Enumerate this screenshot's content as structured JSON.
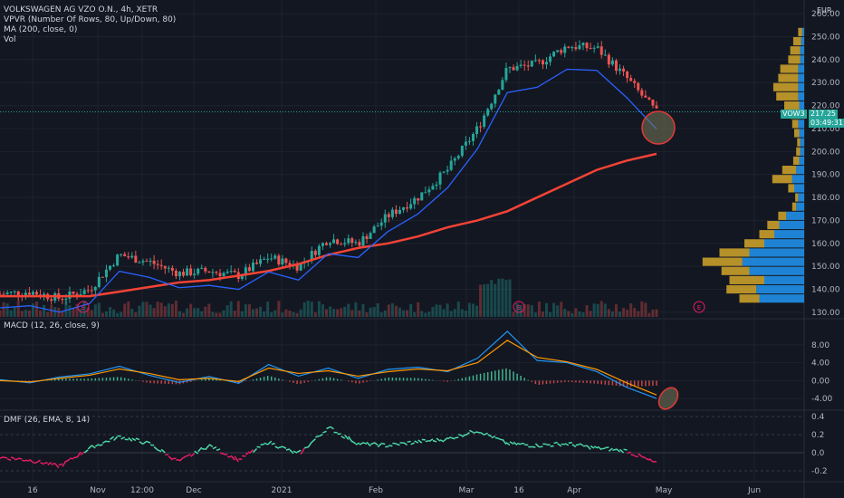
{
  "legend": {
    "title": "VOLKSWAGEN AG VZO O.N., 4h, XETR",
    "line2": "VPVR (Number Of Rows, 80, Up/Down, 80)",
    "line3": "MA (200, close, 0)",
    "line4": "Vol",
    "macd": "MACD (12, 26, close, 9)",
    "dmf": "DMF (26, EMA, 8, 14)"
  },
  "currency": "EUR",
  "price_badge": {
    "symbol": "VOW3",
    "price": "217.25",
    "timer": "03:49:31",
    "color": "#26a69a"
  },
  "earnings_marker": "E",
  "colors": {
    "background": "#131722",
    "up": "#26a69a",
    "down": "#ef5350",
    "ma200": "#f44336",
    "blue_ma": "#2962ff",
    "vp_up": "#2196f3",
    "vp_down": "#d4a62a",
    "macd": "#2196f3",
    "signal": "#ff9800",
    "dmf_up": "#4cd9a8",
    "dmf_down": "#e91e63"
  },
  "chart_data": [
    {
      "type": "line",
      "title": "VOLKSWAGEN AG VZO O.N., 4h, XETR",
      "x_ticks": [
        "16",
        "Nov",
        "12:00",
        "Dec",
        "2021",
        "Feb",
        "Mar",
        "16",
        "Apr",
        "May",
        "Jun"
      ],
      "y_ticks": [
        130,
        140,
        150,
        160,
        170,
        180,
        190,
        200,
        210,
        220,
        230,
        240,
        250,
        260
      ],
      "ylim": [
        128,
        262
      ],
      "series": [
        {
          "name": "Price",
          "x": [
            "Oct 5",
            "Oct 16",
            "Oct 28",
            "Nov 5",
            "Nov 15",
            "Nov 25",
            "Dec 5",
            "Dec 15",
            "Dec 28",
            "Jan 8",
            "Jan 20",
            "Jan 31",
            "Feb 10",
            "Feb 20",
            "Mar 2",
            "Mar 10",
            "Mar 16",
            "Mar 20",
            "Mar 28",
            "Apr 5",
            "Apr 15",
            "Apr 22",
            "Apr 28"
          ],
          "values": [
            138,
            139,
            136,
            140,
            155,
            152,
            147,
            148,
            146,
            154,
            150,
            162,
            160,
            172,
            180,
            192,
            210,
            236,
            238,
            246,
            245,
            232,
            217
          ]
        },
        {
          "name": "MA (200, close, 0)",
          "values": [
            137,
            137,
            137,
            137,
            139,
            141,
            143,
            144,
            146,
            148,
            151,
            155,
            158,
            160,
            163,
            167,
            170,
            174,
            180,
            186,
            192,
            196,
            199
          ]
        }
      ],
      "volume_profile": {
        "price_levels": [
          134,
          138,
          142,
          146,
          150,
          154,
          158,
          162,
          166,
          170,
          174,
          178,
          182,
          186,
          190,
          194,
          198,
          202,
          206,
          210,
          214,
          218,
          222,
          226,
          230,
          234,
          238,
          242,
          246,
          250
        ],
        "up": [
          45,
          48,
          40,
          55,
          62,
          55,
          40,
          30,
          25,
          18,
          8,
          6,
          10,
          12,
          8,
          5,
          4,
          4,
          5,
          6,
          4,
          5,
          6,
          6,
          6,
          6,
          4,
          4,
          3,
          2
        ],
        "down": [
          20,
          30,
          35,
          28,
          40,
          30,
          20,
          15,
          12,
          8,
          4,
          3,
          6,
          20,
          14,
          6,
          4,
          3,
          5,
          6,
          10,
          15,
          22,
          25,
          20,
          18,
          12,
          10,
          8,
          4
        ]
      },
      "last_price": 217.25
    },
    {
      "type": "line",
      "title": "MACD (12, 26, close, 9)",
      "y_ticks": [
        -4.0,
        0.0,
        4.0,
        8.0
      ],
      "ylim": [
        -6,
        11
      ],
      "series": [
        {
          "name": "MACD",
          "values": [
            0.2,
            -0.5,
            0.8,
            1.5,
            3.2,
            1.2,
            -0.4,
            0.9,
            -0.6,
            3.6,
            1.0,
            2.8,
            0.5,
            2.5,
            3.0,
            2.0,
            5.0,
            11.0,
            4.5,
            4.0,
            2.0,
            -1.5,
            -4.0
          ]
        },
        {
          "name": "Signal",
          "values": [
            0.0,
            -0.3,
            0.5,
            1.2,
            2.6,
            1.6,
            0.2,
            0.5,
            -0.2,
            2.8,
            1.6,
            2.2,
            1.0,
            2.0,
            2.6,
            2.2,
            4.0,
            9.0,
            5.2,
            4.2,
            2.5,
            -0.5,
            -3.2
          ]
        }
      ]
    },
    {
      "type": "line",
      "title": "DMF (26, EMA, 8, 14)",
      "y_ticks": [
        -0.2,
        0.0,
        0.2,
        0.4
      ],
      "ylim": [
        -0.3,
        0.45
      ],
      "series": [
        {
          "name": "DMF",
          "values": [
            -0.05,
            -0.08,
            -0.15,
            0.05,
            0.18,
            0.1,
            -0.1,
            0.08,
            -0.08,
            0.12,
            -0.02,
            0.28,
            0.1,
            0.08,
            0.12,
            0.15,
            0.25,
            0.1,
            0.08,
            0.1,
            0.05,
            0.02,
            -0.12
          ]
        }
      ]
    }
  ]
}
